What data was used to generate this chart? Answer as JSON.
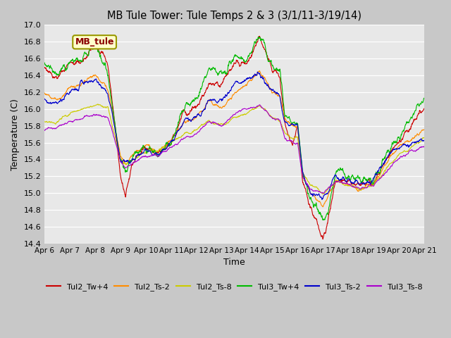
{
  "title": "MB Tule Tower: Tule Temps 2 & 3 (3/1/11-3/19/14)",
  "xlabel": "Time",
  "ylabel": "Temperature (C)",
  "ylim": [
    14.4,
    17.0
  ],
  "xtick_labels": [
    "Apr 6",
    "Apr 7",
    "Apr 8",
    "Apr 9",
    "Apr 10",
    "Apr 11",
    "Apr 12",
    "Apr 13",
    "Apr 14",
    "Apr 15",
    "Apr 16",
    "Apr 17",
    "Apr 18",
    "Apr 19",
    "Apr 20",
    "Apr 21"
  ],
  "series": [
    {
      "name": "Tul2_Tw+4",
      "color": "#cc0000"
    },
    {
      "name": "Tul2_Ts-2",
      "color": "#ff8c00"
    },
    {
      "name": "Tul2_Ts-8",
      "color": "#cccc00"
    },
    {
      "name": "Tul3_Tw+4",
      "color": "#00bb00"
    },
    {
      "name": "Tul3_Ts-2",
      "color": "#0000cc"
    },
    {
      "name": "Tul3_Ts-8",
      "color": "#aa00cc"
    }
  ],
  "annotation": "MB_tule",
  "annotation_fx": 0.08,
  "annotation_fy": 0.91,
  "fig_width": 6.4,
  "fig_height": 4.8,
  "dpi": 100
}
